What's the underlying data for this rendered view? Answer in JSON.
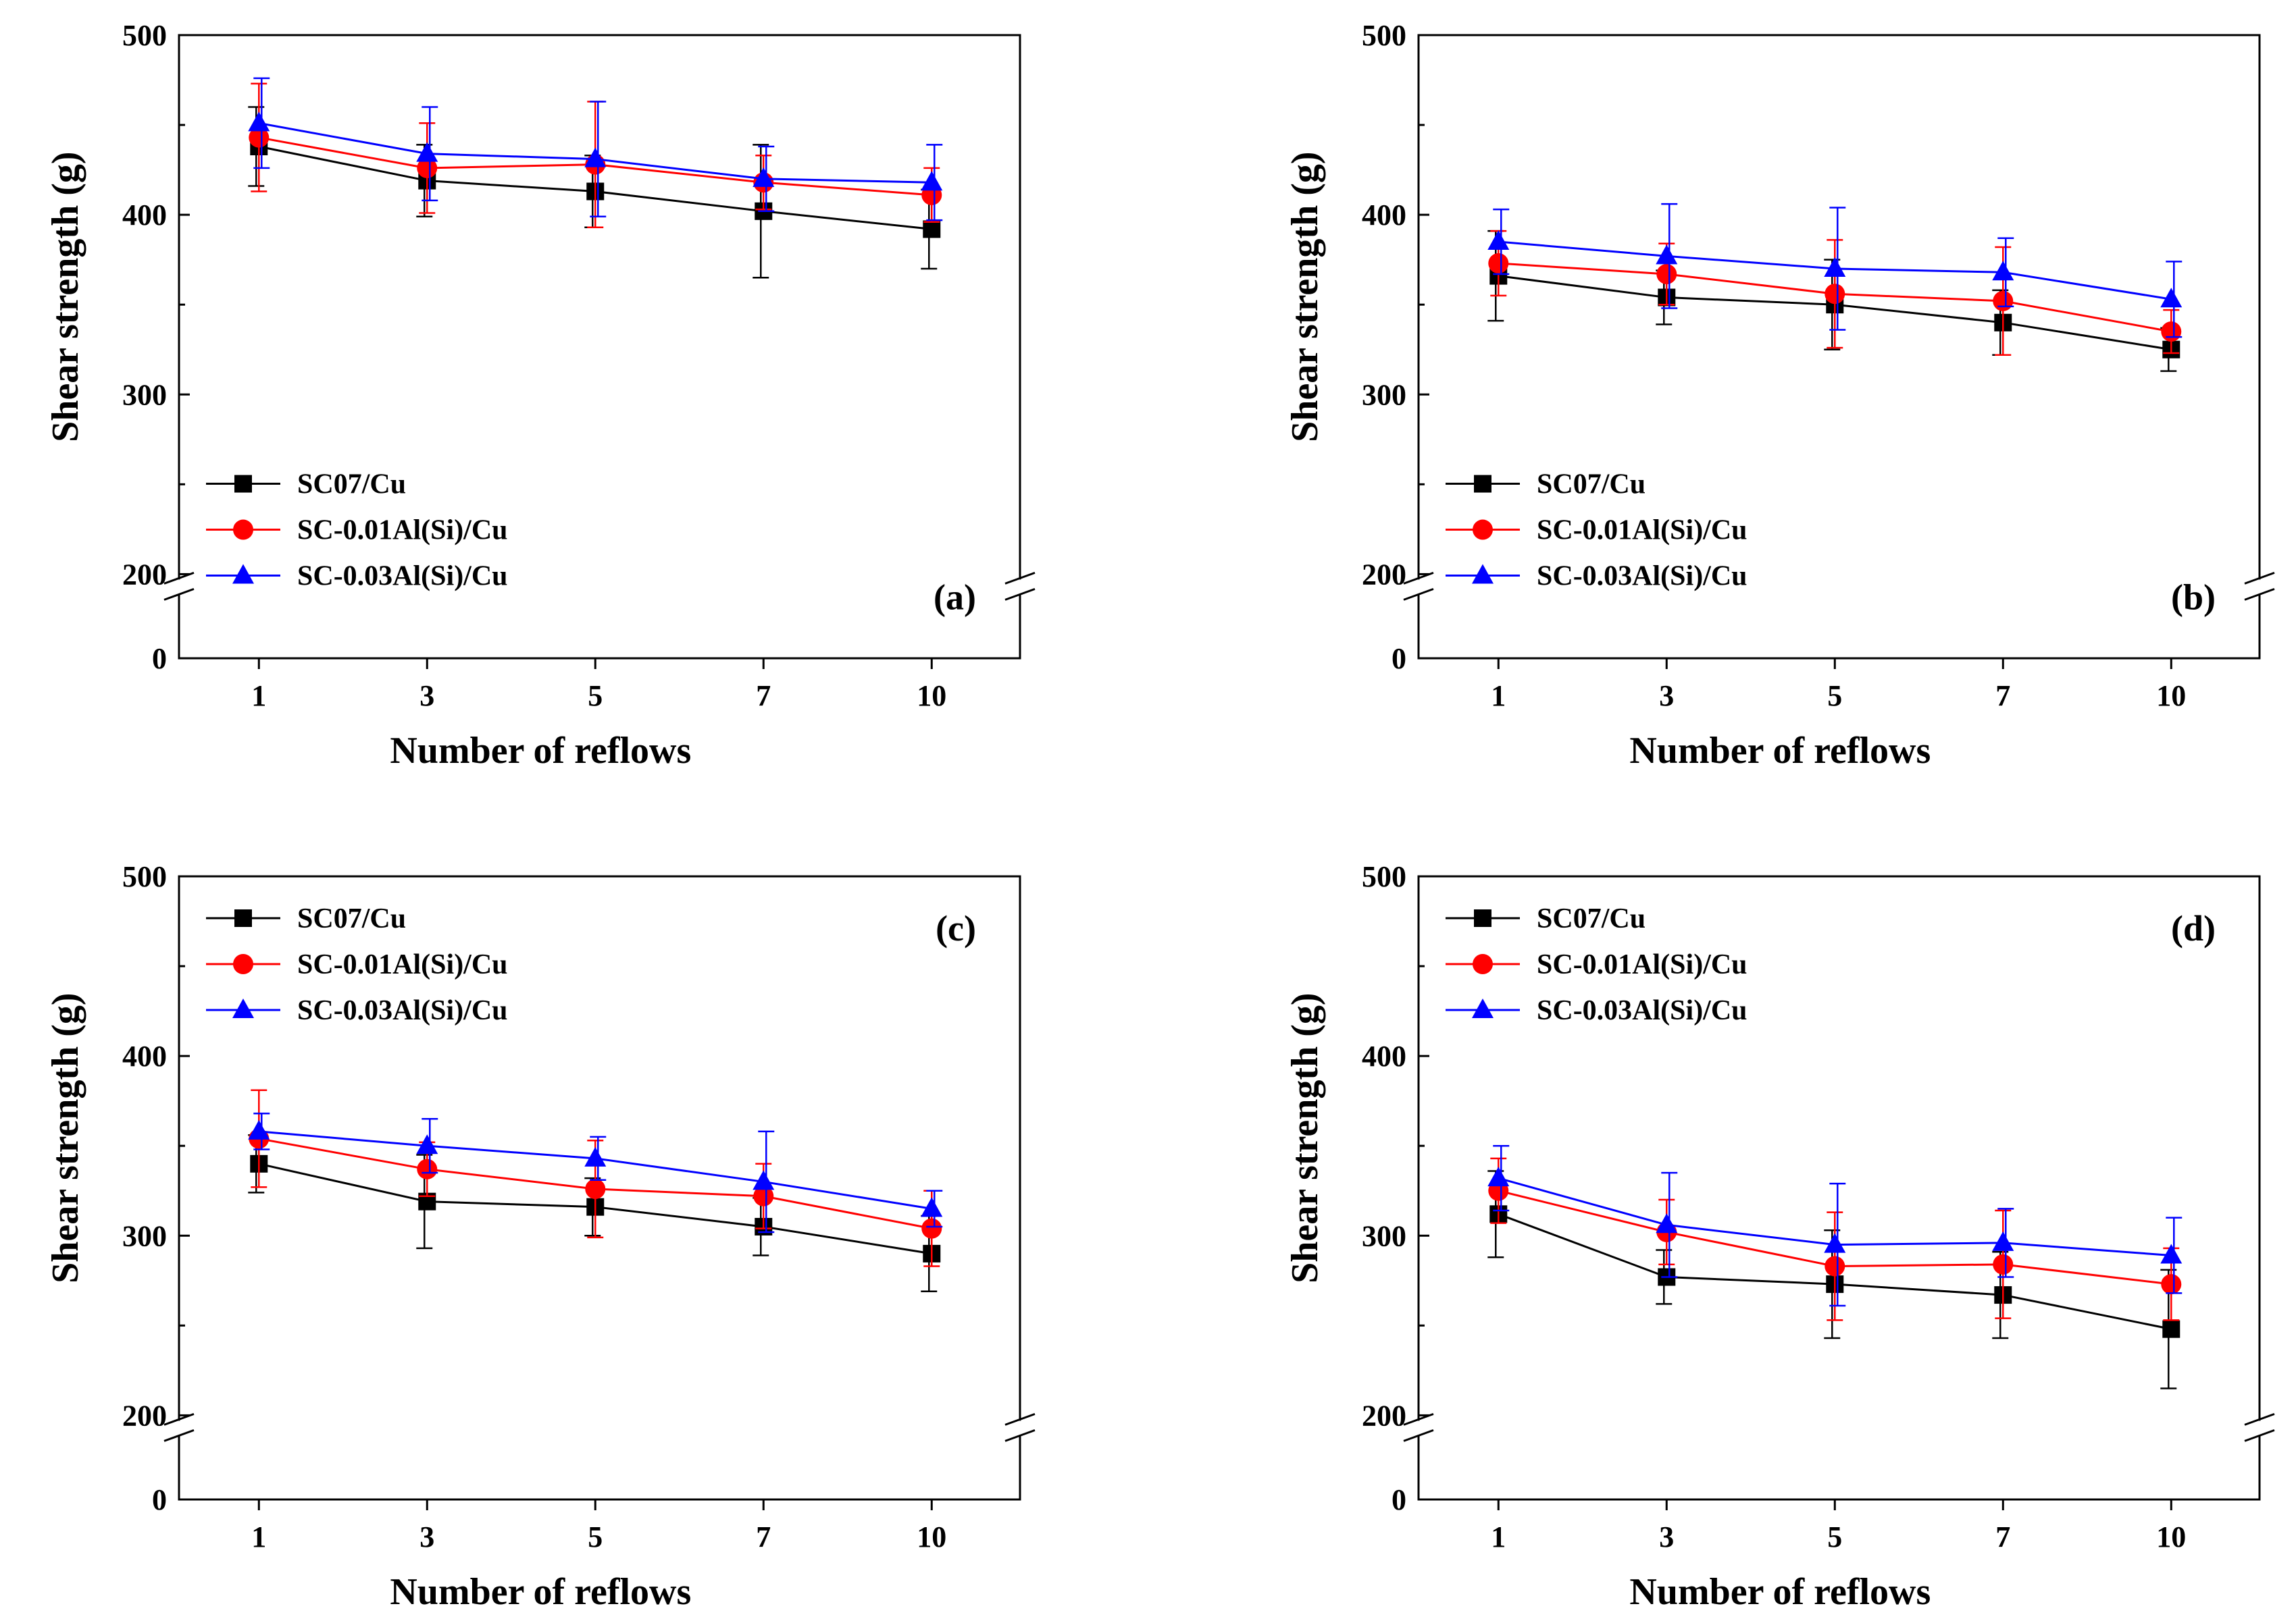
{
  "figure": {
    "description_title": "Shear strength vs number of reflows"
  },
  "chart_data": [
    {
      "type": "line",
      "panel_label": "(a)",
      "xlabel": "Number of reflows",
      "ylabel": "Shear strength (g)",
      "categories": [
        "1",
        "3",
        "5",
        "7",
        "10"
      ],
      "y_ticks_upper": [
        "200",
        "300",
        "400",
        "500"
      ],
      "y_tick_lower": "0",
      "ylim_upper": [
        200,
        500
      ],
      "ylim_lower": [
        0,
        50
      ],
      "axis_break": true,
      "legend_position": "bottom-left",
      "series": [
        {
          "name": "SC07/Cu",
          "color": "#000000",
          "marker": "square",
          "values": [
            438,
            419,
            413,
            402,
            392
          ],
          "errors": [
            22,
            20,
            20,
            37,
            22
          ]
        },
        {
          "name": "SC-0.01Al(Si)/Cu",
          "color": "#ff0000",
          "marker": "circle",
          "values": [
            443,
            426,
            428,
            418,
            411
          ],
          "errors": [
            30,
            25,
            35,
            15,
            15
          ]
        },
        {
          "name": "SC-0.03Al(Si)/Cu",
          "color": "#0000ff",
          "marker": "triangle",
          "values": [
            451,
            434,
            431,
            420,
            418
          ],
          "errors": [
            25,
            26,
            32,
            18,
            21
          ]
        }
      ]
    },
    {
      "type": "line",
      "panel_label": "(b)",
      "xlabel": "Number of reflows",
      "ylabel": "Shear strength (g)",
      "categories": [
        "1",
        "3",
        "5",
        "7",
        "10"
      ],
      "y_ticks_upper": [
        "200",
        "300",
        "400",
        "500"
      ],
      "y_tick_lower": "0",
      "ylim_upper": [
        200,
        500
      ],
      "ylim_lower": [
        0,
        50
      ],
      "axis_break": true,
      "legend_position": "bottom-left",
      "series": [
        {
          "name": "SC07/Cu",
          "color": "#000000",
          "marker": "square",
          "values": [
            366,
            354,
            350,
            340,
            325
          ],
          "errors": [
            25,
            15,
            25,
            18,
            12
          ]
        },
        {
          "name": "SC-0.01Al(Si)/Cu",
          "color": "#ff0000",
          "marker": "circle",
          "values": [
            373,
            367,
            356,
            352,
            335
          ],
          "errors": [
            18,
            17,
            30,
            30,
            12
          ]
        },
        {
          "name": "SC-0.03Al(Si)/Cu",
          "color": "#0000ff",
          "marker": "triangle",
          "values": [
            385,
            377,
            370,
            368,
            353
          ],
          "errors": [
            18,
            29,
            34,
            19,
            21
          ]
        }
      ]
    },
    {
      "type": "line",
      "panel_label": "(c)",
      "xlabel": "Number of reflows",
      "ylabel": "Shear strength (g)",
      "categories": [
        "1",
        "3",
        "5",
        "7",
        "10"
      ],
      "y_ticks_upper": [
        "200",
        "300",
        "400",
        "500"
      ],
      "y_tick_lower": "0",
      "ylim_upper": [
        200,
        500
      ],
      "ylim_lower": [
        0,
        50
      ],
      "axis_break": true,
      "legend_position": "top-left",
      "series": [
        {
          "name": "SC07/Cu",
          "color": "#000000",
          "marker": "square",
          "values": [
            340,
            319,
            316,
            305,
            290
          ],
          "errors": [
            16,
            26,
            16,
            16,
            21
          ]
        },
        {
          "name": "SC-0.01Al(Si)/Cu",
          "color": "#ff0000",
          "marker": "circle",
          "values": [
            354,
            337,
            326,
            322,
            304
          ],
          "errors": [
            27,
            15,
            27,
            18,
            21
          ]
        },
        {
          "name": "SC-0.03Al(Si)/Cu",
          "color": "#0000ff",
          "marker": "triangle",
          "values": [
            358,
            350,
            343,
            330,
            315
          ],
          "errors": [
            10,
            15,
            12,
            28,
            10
          ]
        }
      ]
    },
    {
      "type": "line",
      "panel_label": "(d)",
      "xlabel": "Number of reflows",
      "ylabel": "Shear strength (g)",
      "categories": [
        "1",
        "3",
        "5",
        "7",
        "10"
      ],
      "y_ticks_upper": [
        "200",
        "300",
        "400",
        "500"
      ],
      "y_tick_lower": "0",
      "ylim_upper": [
        200,
        500
      ],
      "ylim_lower": [
        0,
        50
      ],
      "axis_break": true,
      "legend_position": "top-left",
      "series": [
        {
          "name": "SC07/Cu",
          "color": "#000000",
          "marker": "square",
          "values": [
            312,
            277,
            273,
            267,
            248
          ],
          "errors": [
            24,
            15,
            30,
            24,
            33
          ]
        },
        {
          "name": "SC-0.01Al(Si)/Cu",
          "color": "#ff0000",
          "marker": "circle",
          "values": [
            325,
            302,
            283,
            284,
            273
          ],
          "errors": [
            18,
            18,
            30,
            30,
            20
          ]
        },
        {
          "name": "SC-0.03Al(Si)/Cu",
          "color": "#0000ff",
          "marker": "triangle",
          "values": [
            332,
            306,
            295,
            296,
            289
          ],
          "errors": [
            18,
            29,
            34,
            19,
            21
          ]
        }
      ]
    }
  ]
}
